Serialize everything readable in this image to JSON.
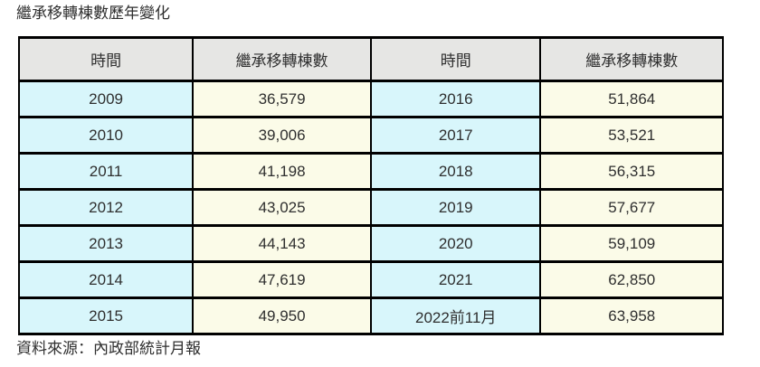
{
  "page": {
    "title": "繼承移轉棟數歷年變化",
    "source": "資料來源：內政部統計月報"
  },
  "table": {
    "headers": [
      "時間",
      "繼承移轉棟數",
      "時間",
      "繼承移轉棟數"
    ],
    "rows": [
      [
        "2009",
        "36,579",
        "2016",
        "51,864"
      ],
      [
        "2010",
        "39,006",
        "2017",
        "53,521"
      ],
      [
        "2011",
        "41,198",
        "2018",
        "56,315"
      ],
      [
        "2012",
        "43,025",
        "2019",
        "57,677"
      ],
      [
        "2013",
        "44,143",
        "2020",
        "59,109"
      ],
      [
        "2014",
        "47,619",
        "2021",
        "62,850"
      ],
      [
        "2015",
        "49,950",
        "2022前11月",
        "63,958"
      ]
    ]
  },
  "colors": {
    "header_bg": "#e6e6e4",
    "year_bg": "#d8f6fb",
    "value_bg": "#fbfbe8",
    "border": "#000000",
    "text": "#2f2f2f"
  },
  "chart_data": {
    "type": "table",
    "title": "繼承移轉棟數歷年變化",
    "columns": [
      "時間",
      "繼承移轉棟數"
    ],
    "rows": [
      [
        "2009",
        36579
      ],
      [
        "2010",
        39006
      ],
      [
        "2011",
        41198
      ],
      [
        "2012",
        43025
      ],
      [
        "2013",
        44143
      ],
      [
        "2014",
        47619
      ],
      [
        "2015",
        49950
      ],
      [
        "2016",
        51864
      ],
      [
        "2017",
        53521
      ],
      [
        "2018",
        56315
      ],
      [
        "2019",
        57677
      ],
      [
        "2020",
        59109
      ],
      [
        "2021",
        62850
      ],
      [
        "2022前11月",
        63958
      ]
    ],
    "source": "資料來源：內政部統計月報",
    "layout": "two-column-pairs: years 2009-2015 left pair, 2016-2022前11月 right pair"
  }
}
